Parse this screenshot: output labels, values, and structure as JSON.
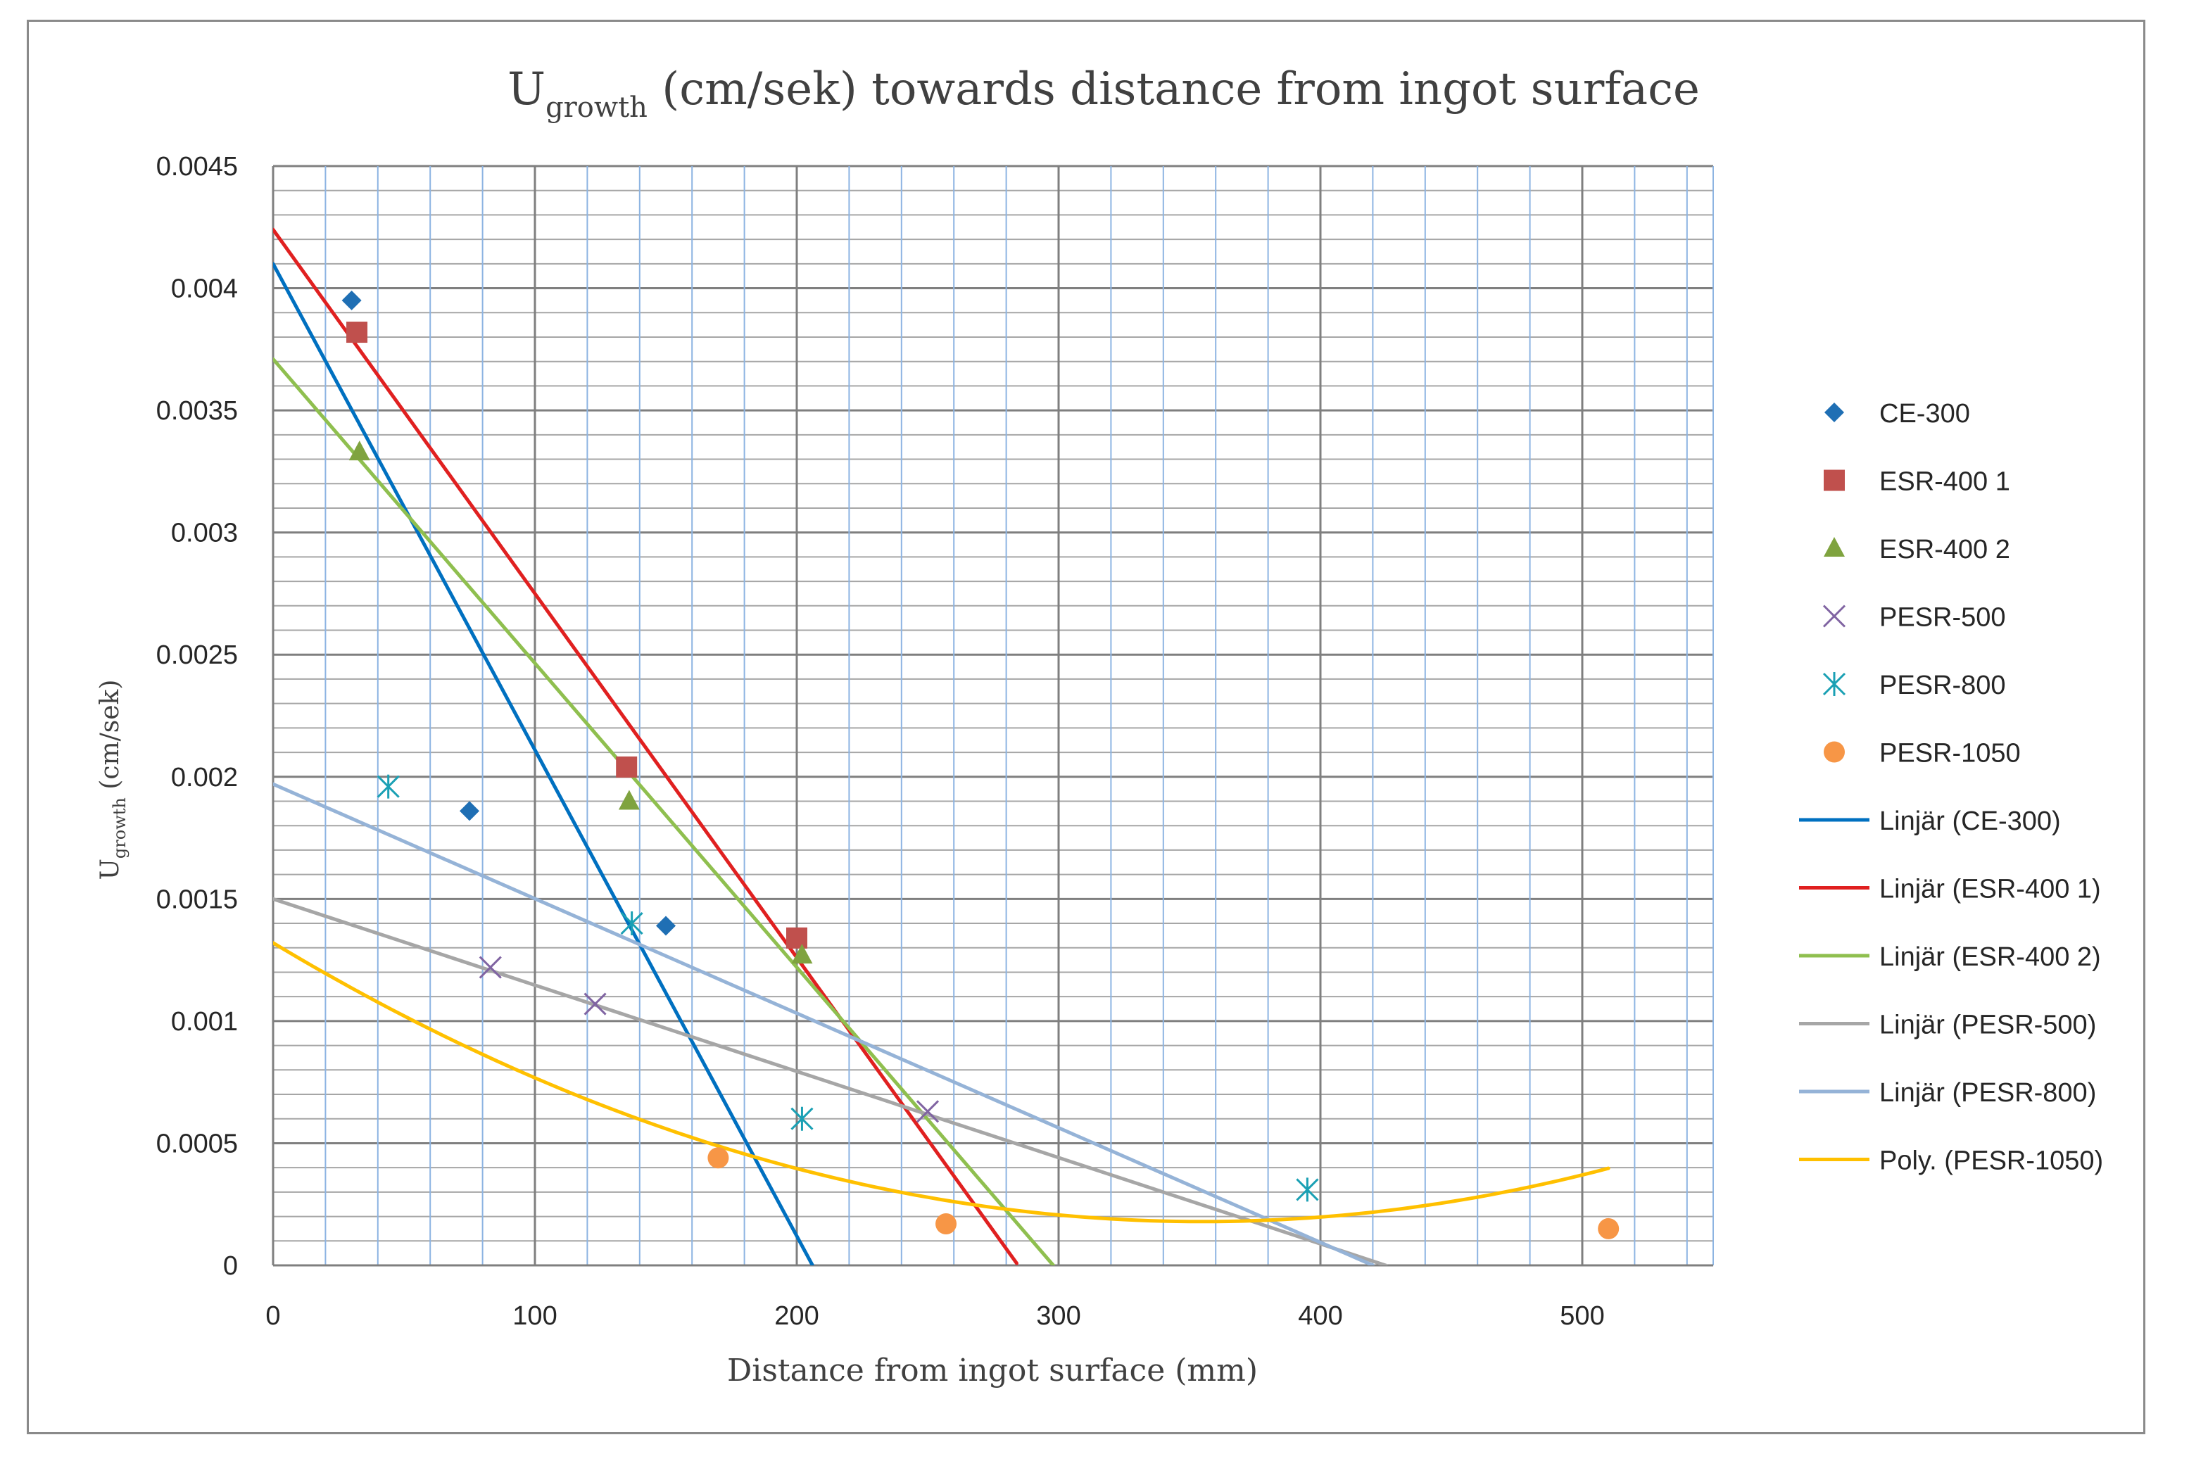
{
  "chart_data": {
    "type": "scatter",
    "title": {
      "main": "U",
      "sub": "growth",
      "rest": " (cm/sek) towards distance from ingot surface"
    },
    "xlabel": "Distance from ingot surface (mm)",
    "ylabel": {
      "main": "U",
      "sub": "growth",
      "rest": "  (cm/sek)"
    },
    "xlim": [
      0,
      550
    ],
    "ylim": [
      0,
      0.0045
    ],
    "x_ticks": [
      0,
      100,
      200,
      300,
      400,
      500
    ],
    "x_tick_labels": [
      "0",
      "100",
      "200",
      "300",
      "400",
      "500"
    ],
    "y_ticks": [
      0,
      0.0005,
      0.001,
      0.0015,
      0.002,
      0.0025,
      0.003,
      0.0035,
      0.004,
      0.0045
    ],
    "y_tick_labels": [
      "0",
      "0.0005",
      "0.001",
      "0.0015",
      "0.002",
      "0.0025",
      "0.003",
      "0.0035",
      "0.004",
      "0.0045"
    ],
    "x_major_step": 100,
    "x_minor_step": 20,
    "y_major_step": 0.0005,
    "y_minor_step": 0.0001,
    "grid": true,
    "legend_position": "right",
    "series": [
      {
        "name": "CE-300",
        "marker": "diamond",
        "color": "#1f6fb4",
        "points": [
          [
            30,
            0.00395
          ],
          [
            75,
            0.00186
          ],
          [
            150,
            0.00139
          ]
        ]
      },
      {
        "name": "ESR-400 1",
        "marker": "square",
        "color": "#c0504d",
        "points": [
          [
            32,
            0.00382
          ],
          [
            135,
            0.00204
          ],
          [
            200,
            0.00134
          ]
        ]
      },
      {
        "name": "ESR-400 2",
        "marker": "triangle",
        "color": "#7fa33f",
        "points": [
          [
            33,
            0.00333
          ],
          [
            136,
            0.0019
          ],
          [
            202,
            0.00127
          ]
        ]
      },
      {
        "name": "PESR-500",
        "marker": "x",
        "color": "#8064a2",
        "points": [
          [
            83,
            0.00122
          ],
          [
            123,
            0.00107
          ],
          [
            250,
            0.00063
          ]
        ]
      },
      {
        "name": "PESR-800",
        "marker": "star",
        "color": "#1aa0b4",
        "points": [
          [
            44,
            0.00196
          ],
          [
            137,
            0.0014
          ],
          [
            202,
            0.0006
          ],
          [
            395,
            0.00031
          ]
        ]
      },
      {
        "name": "PESR-1050",
        "marker": "circle",
        "color": "#f79646",
        "points": [
          [
            170,
            0.00044
          ],
          [
            257,
            0.00017
          ],
          [
            510,
            0.00015
          ]
        ]
      }
    ],
    "trendlines": [
      {
        "name": "Linjär (CE-300)",
        "kind": "linear",
        "color": "#0070c0",
        "x_range": [
          0,
          206
        ],
        "intercept": 0.0041,
        "slope": -1.99e-05
      },
      {
        "name": "Linjär (ESR-400 1)",
        "kind": "linear",
        "color": "#e02020",
        "x_range": [
          0,
          284
        ],
        "intercept": 0.00424,
        "slope": -1.49e-05
      },
      {
        "name": "Linjär (ESR-400 2)",
        "kind": "linear",
        "color": "#8fbf4f",
        "x_range": [
          0,
          298
        ],
        "intercept": 0.00371,
        "slope": -1.245e-05
      },
      {
        "name": "Linjär (PESR-500)",
        "kind": "linear",
        "color": "#a6a6a6",
        "x_range": [
          0,
          425
        ],
        "intercept": 0.0015,
        "slope": -3.53e-06
      },
      {
        "name": "Linjär (PESR-800)",
        "kind": "linear",
        "color": "#95b3d7",
        "x_range": [
          0,
          420
        ],
        "intercept": 0.00197,
        "slope": -4.69e-06
      },
      {
        "name": "Poly. (PESR-1050)",
        "kind": "poly2",
        "color": "#ffc000",
        "x_range": [
          0,
          510
        ],
        "a": 9.06e-09,
        "b": -6.43e-06,
        "c": 0.00132
      }
    ]
  }
}
